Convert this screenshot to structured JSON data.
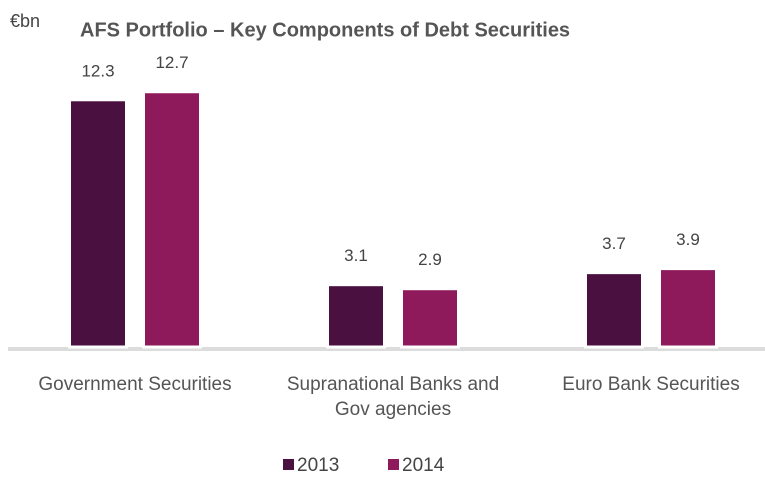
{
  "chart_data": {
    "type": "bar",
    "title": "AFS Portfolio – Key Components of Debt Securities",
    "unit_label": "€bn",
    "categories": [
      "Government Securities",
      "Supranational Banks and Gov agencies",
      "Euro Bank Securities"
    ],
    "series": [
      {
        "name": "2013",
        "color": "#4a1040",
        "values": [
          12.3,
          3.1,
          3.7
        ]
      },
      {
        "name": "2014",
        "color": "#8e1a5c",
        "values": [
          12.7,
          2.9,
          3.9
        ]
      }
    ],
    "legend": "bottom"
  }
}
